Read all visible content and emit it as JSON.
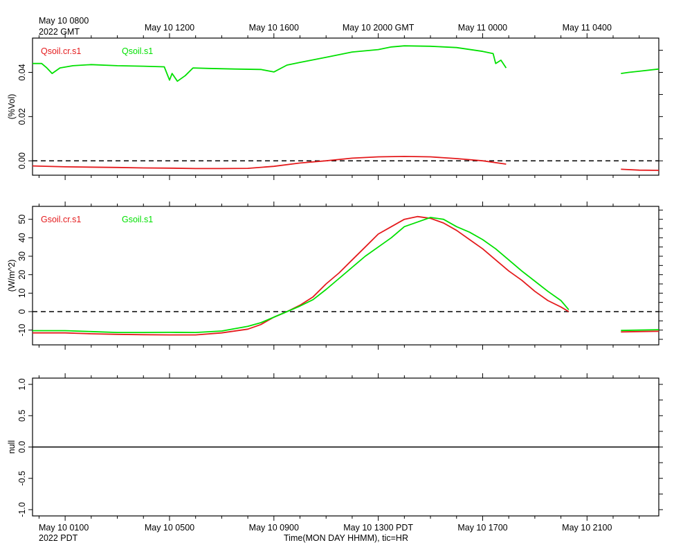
{
  "top_axis": {
    "first_label": "May 10 0800",
    "first_sublabel": "2022 GMT",
    "labels": [
      "May 10 1200",
      "May 10 1600",
      "May 10 2000 GMT",
      "May 11 0000",
      "May 11 0400"
    ]
  },
  "bottom_axis": {
    "first_label": "May 10 0100",
    "first_sublabel": "2022 PDT",
    "labels": [
      "May 10 0500",
      "May 10 0900",
      "May 10 1300 PDT",
      "May 10 1700",
      "May 10 2100"
    ],
    "xlabel": "Time(MON DAY HHMM), tic=HR"
  },
  "colors": {
    "red": "#e41a1c",
    "green": "#00e000",
    "axis": "#000000"
  },
  "chart_data": [
    {
      "type": "line",
      "ylabel": "(%Vol)",
      "x_unit": "hours since May 10 0000 PDT",
      "xlim": [
        -0.25,
        23.75
      ],
      "ylim": [
        -0.0065,
        0.0555
      ],
      "yticks": [
        0.0,
        0.02,
        0.04
      ],
      "yticklabels": [
        "0.00",
        "0.02",
        "0.04"
      ],
      "reference_line": 0.0,
      "legend": [
        "Qsoil.cr.s1",
        "Qsoil.s1"
      ],
      "series": [
        {
          "name": "Qsoil.cr.s1",
          "color": "red",
          "segments": [
            [
              [
                -0.25,
                -0.0023
              ],
              [
                1,
                -0.0027
              ],
              [
                3,
                -0.003
              ],
              [
                4,
                -0.0032
              ],
              [
                5,
                -0.0033
              ],
              [
                6,
                -0.0035
              ],
              [
                7,
                -0.0035
              ],
              [
                8,
                -0.0034
              ],
              [
                9,
                -0.0025
              ],
              [
                10,
                -0.001
              ],
              [
                11,
                0.0
              ],
              [
                12,
                0.0012
              ],
              [
                13,
                0.0018
              ],
              [
                14,
                0.002
              ],
              [
                15,
                0.0018
              ],
              [
                16,
                0.001
              ],
              [
                17,
                0.0
              ],
              [
                17.9,
                -0.0015
              ]
            ],
            [
              [
                22.3,
                -0.0038
              ],
              [
                23,
                -0.0042
              ],
              [
                23.75,
                -0.0043
              ]
            ]
          ]
        },
        {
          "name": "Qsoil.s1",
          "color": "green",
          "segments": [
            [
              [
                -0.25,
                0.044
              ],
              [
                0.1,
                0.044
              ],
              [
                0.3,
                0.042
              ],
              [
                0.5,
                0.0395
              ],
              [
                0.8,
                0.042
              ],
              [
                1.3,
                0.043
              ],
              [
                2,
                0.0435
              ],
              [
                3,
                0.043
              ],
              [
                4,
                0.0428
              ],
              [
                4.8,
                0.0425
              ],
              [
                5,
                0.0365
              ],
              [
                5.1,
                0.0395
              ],
              [
                5.3,
                0.036
              ],
              [
                5.6,
                0.0385
              ],
              [
                5.9,
                0.042
              ],
              [
                6.5,
                0.0418
              ],
              [
                7.5,
                0.0415
              ],
              [
                8.5,
                0.0413
              ],
              [
                9,
                0.0402
              ],
              [
                9.5,
                0.0433
              ],
              [
                10,
                0.0445
              ],
              [
                11,
                0.0468
              ],
              [
                12,
                0.0492
              ],
              [
                13,
                0.0503
              ],
              [
                13.5,
                0.0515
              ],
              [
                14,
                0.052
              ],
              [
                15,
                0.0518
              ],
              [
                16,
                0.0512
              ],
              [
                17,
                0.0495
              ],
              [
                17.4,
                0.0485
              ],
              [
                17.5,
                0.044
              ],
              [
                17.7,
                0.0455
              ],
              [
                17.9,
                0.042
              ]
            ],
            [
              [
                22.3,
                0.0395
              ],
              [
                22.6,
                0.04
              ],
              [
                23,
                0.0405
              ],
              [
                23.75,
                0.0415
              ]
            ]
          ]
        }
      ]
    },
    {
      "type": "line",
      "ylabel": "(W/m^2)",
      "x_unit": "hours since May 10 0000 PDT",
      "xlim": [
        -0.25,
        23.75
      ],
      "ylim": [
        -18,
        57
      ],
      "yticks": [
        -10,
        0,
        10,
        20,
        30,
        40,
        50
      ],
      "yticklabels": [
        "-10",
        "0",
        "10",
        "20",
        "30",
        "40",
        "50"
      ],
      "reference_line": 0,
      "legend": [
        "Gsoil.cr.s1",
        "Gsoil.s1"
      ],
      "series": [
        {
          "name": "Gsoil.cr.s1",
          "color": "red",
          "segments": [
            [
              [
                -0.25,
                -11.5
              ],
              [
                1,
                -11.5
              ],
              [
                2,
                -12
              ],
              [
                3,
                -12.3
              ],
              [
                4,
                -12.5
              ],
              [
                5,
                -12.6
              ],
              [
                6,
                -12.6
              ],
              [
                7,
                -11.5
              ],
              [
                8,
                -9.5
              ],
              [
                8.5,
                -7
              ],
              [
                9,
                -3
              ],
              [
                9.5,
                0
              ],
              [
                10,
                3.5
              ],
              [
                10.5,
                8
              ],
              [
                11,
                15
              ],
              [
                11.5,
                21
              ],
              [
                12,
                28
              ],
              [
                12.5,
                35
              ],
              [
                13,
                42
              ],
              [
                13.5,
                46
              ],
              [
                14,
                50
              ],
              [
                14.5,
                51.5
              ],
              [
                15,
                50.5
              ],
              [
                15.5,
                48
              ],
              [
                16,
                44
              ],
              [
                16.5,
                39
              ],
              [
                17,
                34
              ],
              [
                17.5,
                28
              ],
              [
                18,
                22
              ],
              [
                18.5,
                17
              ],
              [
                19,
                11
              ],
              [
                19.5,
                6
              ],
              [
                20,
                2.5
              ],
              [
                20.3,
                0
              ]
            ],
            [
              [
                22.3,
                -11
              ],
              [
                23,
                -10.8
              ],
              [
                23.75,
                -10.6
              ]
            ]
          ]
        },
        {
          "name": "Gsoil.s1",
          "color": "green",
          "segments": [
            [
              [
                -0.25,
                -10.3
              ],
              [
                1,
                -10.3
              ],
              [
                2,
                -10.8
              ],
              [
                3,
                -11.3
              ],
              [
                4,
                -11.3
              ],
              [
                5,
                -11.2
              ],
              [
                6,
                -11.3
              ],
              [
                7,
                -10.5
              ],
              [
                8,
                -8
              ],
              [
                8.5,
                -6
              ],
              [
                9,
                -3
              ],
              [
                9.5,
                0
              ],
              [
                10,
                3
              ],
              [
                10.5,
                6.5
              ],
              [
                11,
                12
              ],
              [
                11.5,
                18
              ],
              [
                12,
                24
              ],
              [
                12.5,
                30
              ],
              [
                13,
                35
              ],
              [
                13.5,
                40
              ],
              [
                14,
                46
              ],
              [
                14.5,
                48.5
              ],
              [
                15,
                51
              ],
              [
                15.5,
                50
              ],
              [
                16,
                46
              ],
              [
                16.5,
                43
              ],
              [
                17,
                39
              ],
              [
                17.5,
                34
              ],
              [
                18,
                28
              ],
              [
                18.5,
                22
              ],
              [
                19,
                16.5
              ],
              [
                19.5,
                11
              ],
              [
                20,
                6
              ],
              [
                20.3,
                1
              ]
            ],
            [
              [
                22.3,
                -10.2
              ],
              [
                23,
                -10
              ],
              [
                23.75,
                -9.8
              ]
            ]
          ]
        }
      ]
    },
    {
      "type": "line",
      "ylabel": "null",
      "x_unit": "hours since May 10 0000 PDT",
      "xlim": [
        -0.25,
        23.75
      ],
      "ylim": [
        -1.1,
        1.1
      ],
      "yticks": [
        -1.0,
        -0.5,
        0.0,
        0.5,
        1.0
      ],
      "yticklabels": [
        "-1.0",
        "-0.5",
        "0.0",
        "0.5",
        "1.0"
      ],
      "reference_line": 0.0,
      "legend": [],
      "series": []
    }
  ]
}
